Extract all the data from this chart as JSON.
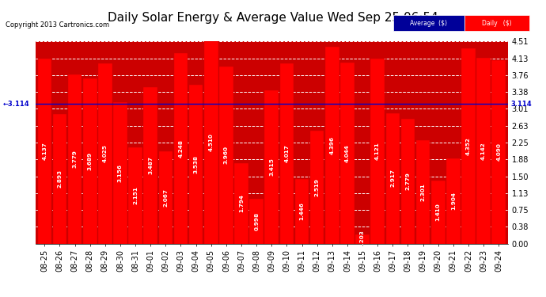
{
  "title": "Daily Solar Energy & Average Value Wed Sep 25 06:54",
  "copyright": "Copyright 2013 Cartronics.com",
  "categories": [
    "08-25",
    "08-26",
    "08-27",
    "08-28",
    "08-29",
    "08-30",
    "08-31",
    "09-01",
    "09-02",
    "09-03",
    "09-04",
    "09-05",
    "09-06",
    "09-07",
    "09-08",
    "09-09",
    "09-10",
    "09-11",
    "09-12",
    "09-13",
    "09-14",
    "09-15",
    "09-16",
    "09-17",
    "09-18",
    "09-19",
    "09-20",
    "09-21",
    "09-22",
    "09-23",
    "09-24"
  ],
  "values": [
    4.137,
    2.893,
    3.779,
    3.689,
    4.025,
    3.156,
    2.151,
    3.487,
    2.067,
    4.248,
    3.538,
    4.51,
    3.96,
    1.794,
    0.998,
    3.415,
    4.017,
    1.446,
    2.519,
    4.396,
    4.044,
    0.203,
    4.121,
    2.917,
    2.779,
    2.301,
    1.41,
    1.904,
    4.352,
    4.142,
    4.09
  ],
  "average": 3.114,
  "bar_color": "#ff0000",
  "bar_edge_color": "#cc0000",
  "average_line_color": "#0000cc",
  "background_color": "#ffffff",
  "plot_bg_color": "#cc0000",
  "grid_color": "white",
  "ylim": [
    0.0,
    4.51
  ],
  "yticks": [
    0.0,
    0.38,
    0.75,
    1.13,
    1.5,
    1.88,
    2.25,
    2.63,
    3.01,
    3.38,
    3.76,
    4.13,
    4.51
  ],
  "legend_avg_color": "#000099",
  "legend_daily_color": "#ff0000",
  "avg_label": "Average  ($)",
  "daily_label": "Daily   ($)",
  "title_fontsize": 11,
  "tick_fontsize": 7,
  "value_fontsize": 5.2,
  "avg_arrow_label": "←3.114",
  "avg_right_label": "3.114"
}
